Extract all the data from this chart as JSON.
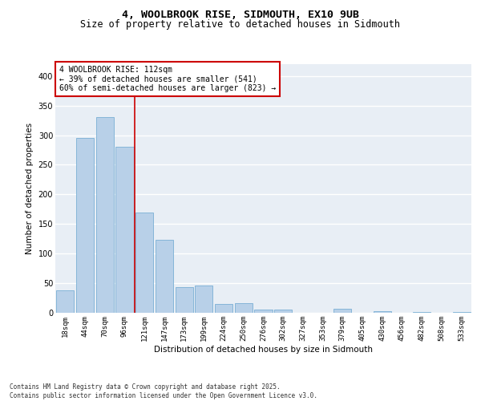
{
  "title_line1": "4, WOOLBROOK RISE, SIDMOUTH, EX10 9UB",
  "title_line2": "Size of property relative to detached houses in Sidmouth",
  "xlabel": "Distribution of detached houses by size in Sidmouth",
  "ylabel": "Number of detached properties",
  "categories": [
    "18sqm",
    "44sqm",
    "70sqm",
    "96sqm",
    "121sqm",
    "147sqm",
    "173sqm",
    "199sqm",
    "224sqm",
    "250sqm",
    "276sqm",
    "302sqm",
    "327sqm",
    "353sqm",
    "379sqm",
    "405sqm",
    "430sqm",
    "456sqm",
    "482sqm",
    "508sqm",
    "533sqm"
  ],
  "values": [
    38,
    295,
    330,
    280,
    170,
    123,
    43,
    46,
    15,
    16,
    5,
    6,
    0,
    0,
    7,
    0,
    3,
    0,
    1,
    0,
    1
  ],
  "bar_color": "#b8d0e8",
  "bar_edge_color": "#7aafd4",
  "background_color": "#e8eef5",
  "grid_color": "#ffffff",
  "vline_color": "#cc0000",
  "annotation_text": "4 WOOLBROOK RISE: 112sqm\n← 39% of detached houses are smaller (541)\n60% of semi-detached houses are larger (823) →",
  "annotation_box_color": "#ffffff",
  "annotation_border_color": "#cc0000",
  "ylim": [
    0,
    420
  ],
  "yticks": [
    0,
    50,
    100,
    150,
    200,
    250,
    300,
    350,
    400
  ],
  "footer": "Contains HM Land Registry data © Crown copyright and database right 2025.\nContains public sector information licensed under the Open Government Licence v3.0.",
  "title_fontsize": 9.5,
  "subtitle_fontsize": 8.5,
  "axis_label_fontsize": 7.5,
  "tick_fontsize": 6.5,
  "annotation_fontsize": 7.0,
  "footer_fontsize": 5.5
}
